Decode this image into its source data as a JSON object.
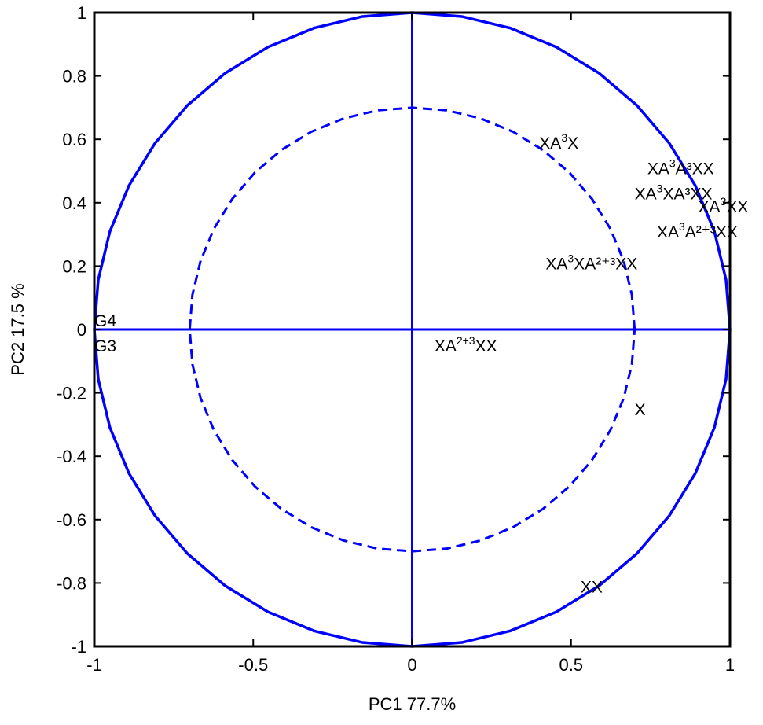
{
  "chart_data": {
    "type": "scatter",
    "title": "",
    "xlabel": "PC1 77.7%",
    "ylabel": "PC2 17.5 %",
    "xlim": [
      -1,
      1
    ],
    "ylim": [
      -1,
      1
    ],
    "x_ticks": [
      {
        "value": -1,
        "label": "-1"
      },
      {
        "value": -0.5,
        "label": "-0.5"
      },
      {
        "value": 0,
        "label": "0"
      },
      {
        "value": 0.5,
        "label": "0.5"
      },
      {
        "value": 1,
        "label": "1"
      }
    ],
    "y_ticks": [
      {
        "value": 1,
        "label": "1"
      },
      {
        "value": 0.8,
        "label": "0.8"
      },
      {
        "value": 0.6,
        "label": "0.6"
      },
      {
        "value": 0.4,
        "label": "0.4"
      },
      {
        "value": 0.2,
        "label": "0.2"
      },
      {
        "value": 0,
        "label": "0"
      },
      {
        "value": -0.2,
        "label": "-0.2"
      },
      {
        "value": -0.4,
        "label": "-0.4"
      },
      {
        "value": -0.6,
        "label": "-0.6"
      },
      {
        "value": -0.8,
        "label": "-0.8"
      },
      {
        "value": -1,
        "label": "-1"
      }
    ],
    "grid": false,
    "circles": [
      {
        "radius": 1.0,
        "style": "solid"
      },
      {
        "radius": 0.7,
        "style": "dashed"
      }
    ],
    "line_color": "#0000ff",
    "points": [
      {
        "name": "XA3X",
        "base": "XA",
        "sup": "3",
        "rest": "X",
        "x": 0.4,
        "y": 0.59
      },
      {
        "name": "XA3A3XX",
        "base": "XA",
        "sup": "3",
        "rest": "A³XX",
        "x": 0.74,
        "y": 0.51
      },
      {
        "name": "XA3XA3XX",
        "base": "XA",
        "sup": "3",
        "rest": "XA³XX",
        "x": 0.7,
        "y": 0.43
      },
      {
        "name": "XA3XX",
        "base": "XA",
        "sup": "3",
        "rest": "XX",
        "x": 0.9,
        "y": 0.39
      },
      {
        "name": "XA3A2+3XX",
        "base": "XA",
        "sup": "3",
        "rest": "A²⁺³XX",
        "x": 0.77,
        "y": 0.31
      },
      {
        "name": "XA3XA2+3XX",
        "base": "XA",
        "sup": "3",
        "rest": "XA²⁺³XX",
        "x": 0.42,
        "y": 0.21
      },
      {
        "name": "G4",
        "base": "G4",
        "sup": "",
        "rest": "",
        "x": -1.0,
        "y": 0.03
      },
      {
        "name": "G3",
        "base": "G3",
        "sup": "",
        "rest": "",
        "x": -1.0,
        "y": -0.05
      },
      {
        "name": "XA2+3XX",
        "base": "XA",
        "sup": "2+3",
        "rest": "XX",
        "x": 0.07,
        "y": -0.05
      },
      {
        "name": "X",
        "base": "X",
        "sup": "",
        "rest": "",
        "x": 0.7,
        "y": -0.25
      },
      {
        "name": "XX",
        "base": "XX",
        "sup": "",
        "rest": "",
        "x": 0.53,
        "y": -0.81
      }
    ]
  }
}
